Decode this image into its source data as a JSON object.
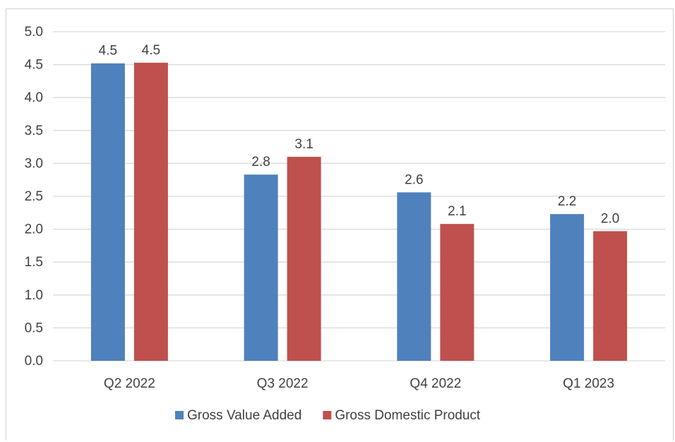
{
  "chart_data": {
    "type": "bar",
    "categories": [
      "Q2 2022",
      "Q3 2022",
      "Q4 2022",
      "Q1 2023"
    ],
    "series": [
      {
        "name": "Gross Value Added",
        "values": [
          4.52,
          2.83,
          2.56,
          2.23
        ],
        "labels": [
          "4.5",
          "2.8",
          "2.6",
          "2.2"
        ],
        "color": "#4f81bd"
      },
      {
        "name": "Gross Domestic Product",
        "values": [
          4.53,
          3.1,
          2.08,
          1.97
        ],
        "labels": [
          "4.5",
          "3.1",
          "2.1",
          "2.0"
        ],
        "color": "#c0504d"
      }
    ],
    "ylim": [
      0,
      5
    ],
    "yticks": [
      "0.0",
      "0.5",
      "1.0",
      "1.5",
      "2.0",
      "2.5",
      "3.0",
      "3.5",
      "4.0",
      "4.5",
      "5.0"
    ],
    "grid": true,
    "gridline_color": "#d9d9d9",
    "legend_position": "bottom",
    "title": "",
    "xlabel": "",
    "ylabel": ""
  }
}
